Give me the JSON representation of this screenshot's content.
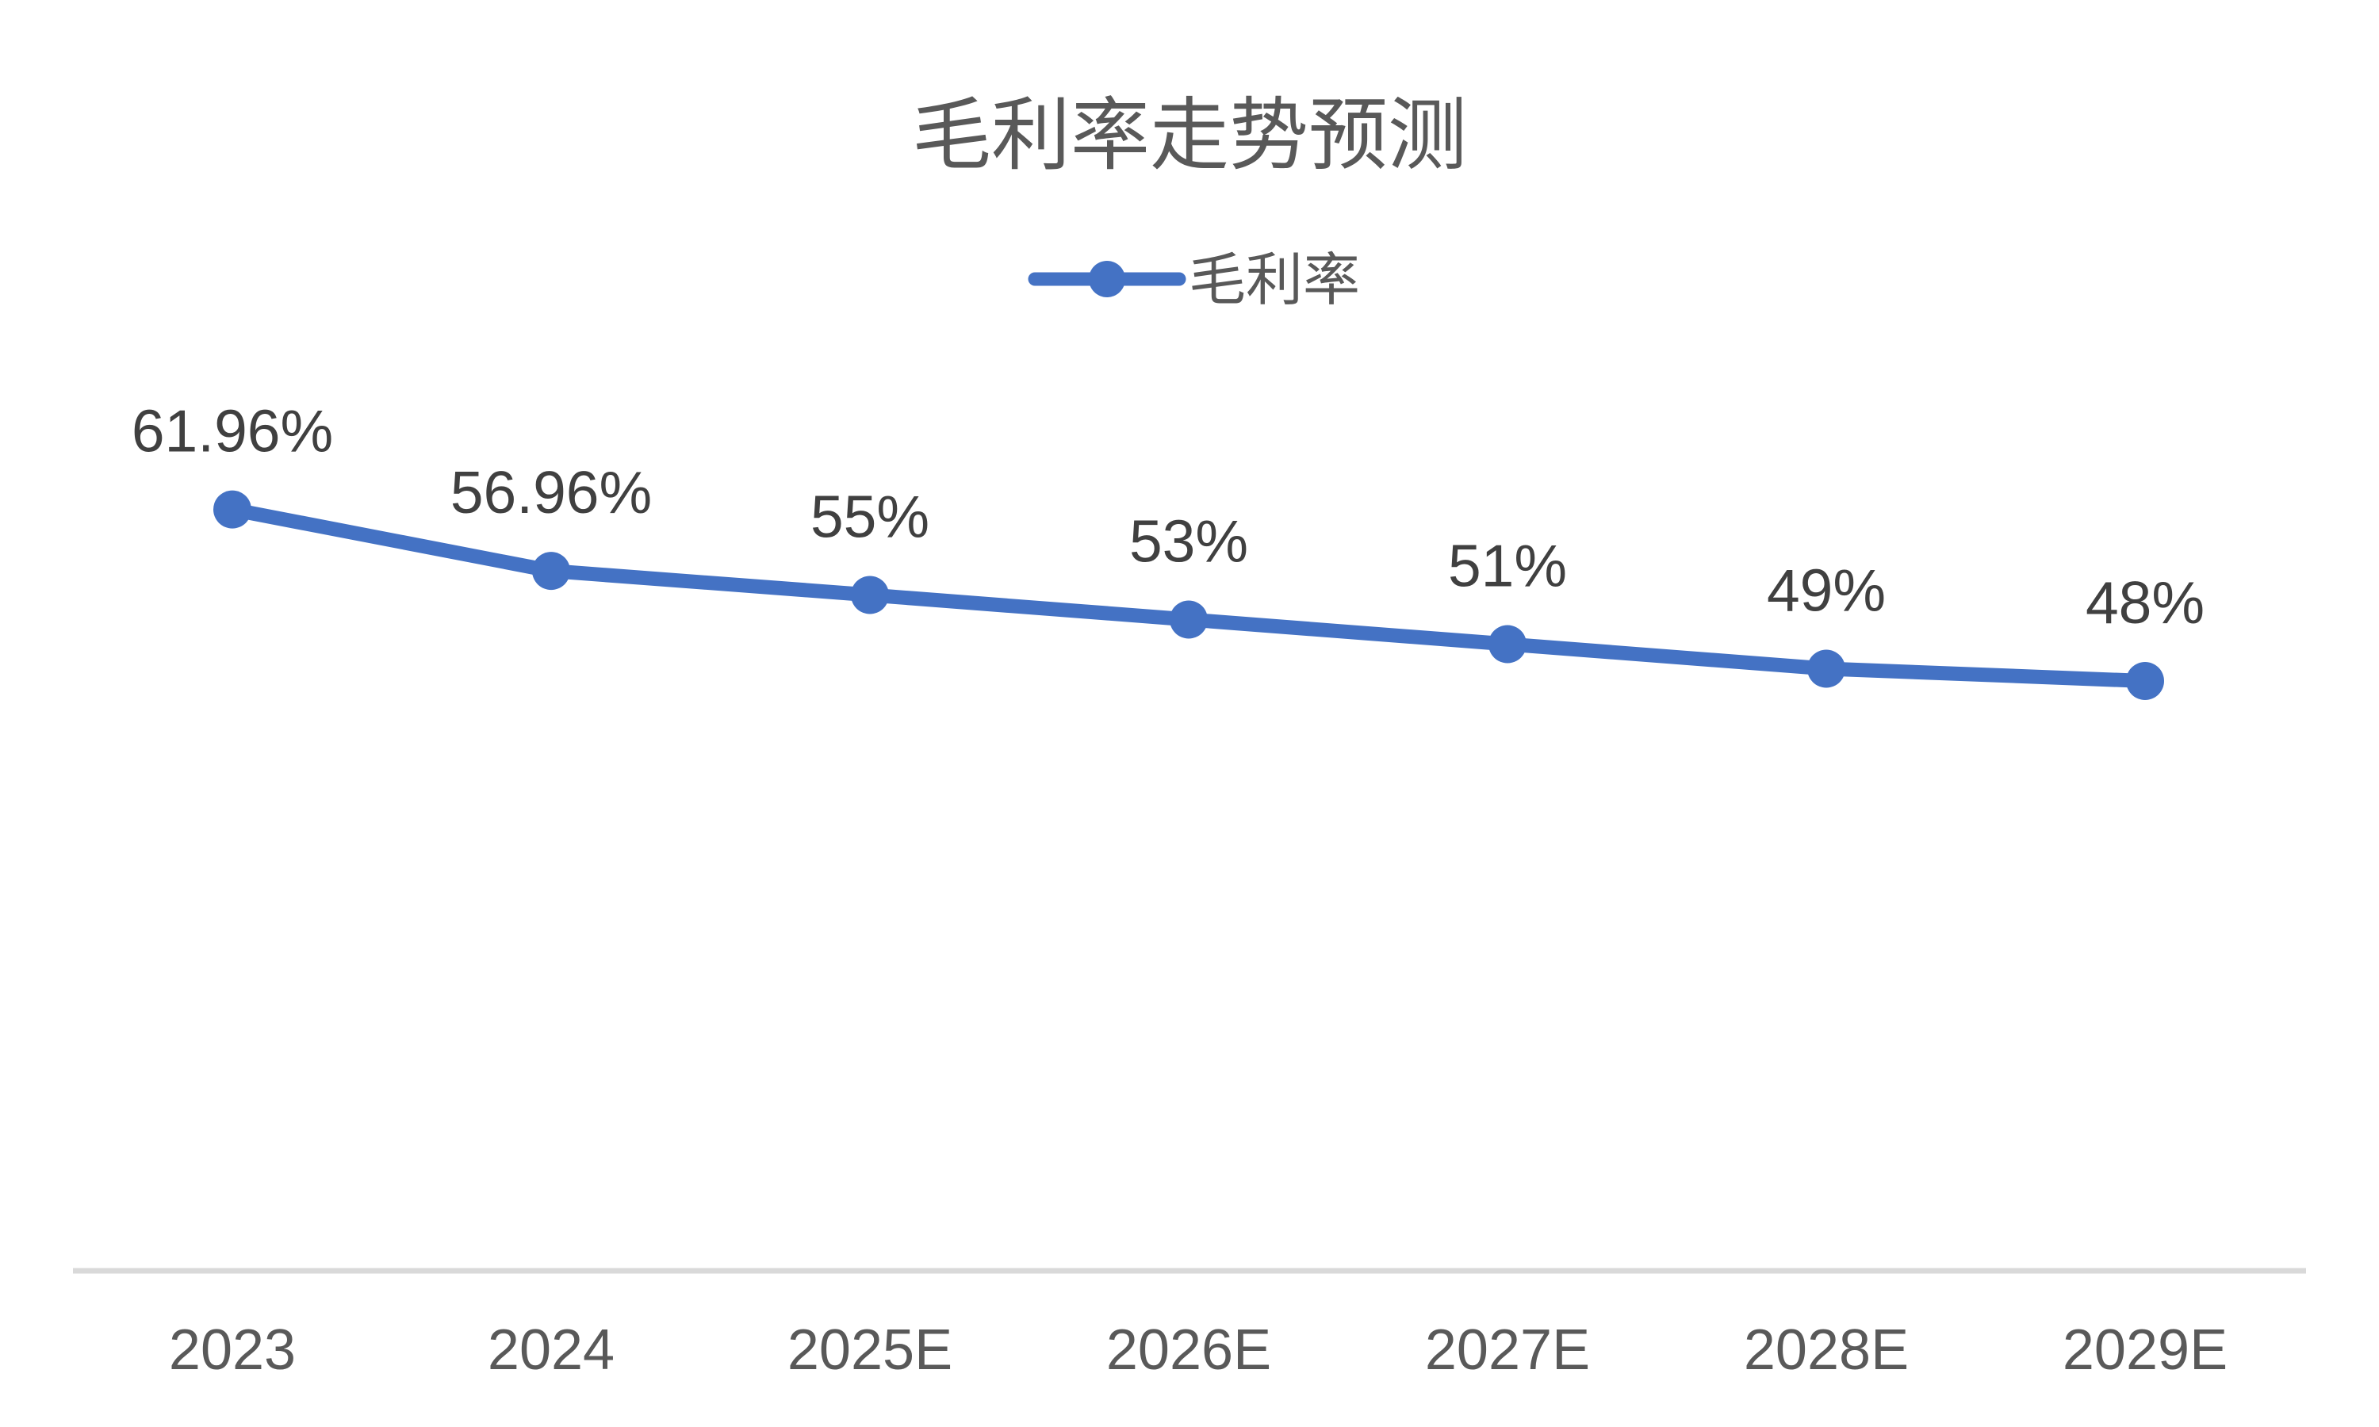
{
  "chart_data": {
    "type": "line",
    "title": "毛利率走势预测",
    "categories": [
      "2023",
      "2024",
      "2025E",
      "2026E",
      "2027E",
      "2028E",
      "2029E"
    ],
    "series": [
      {
        "name": "毛利率",
        "values": [
          61.96,
          56.96,
          55,
          53,
          51,
          49,
          48
        ],
        "color": "#4472C4"
      }
    ],
    "data_labels": [
      "61.96%",
      "56.96%",
      "55%",
      "53%",
      "51%",
      "49%",
      "48%"
    ],
    "xlabel": "",
    "ylabel": "",
    "ylim": [
      0,
      70
    ],
    "y_axis_visible": false,
    "grid": false,
    "legend_position": "top-center",
    "data_label_position": "above",
    "colors": {
      "series": "#4472C4",
      "axis_line": "#D9D9D9",
      "data_label": "#404040",
      "tick_label": "#595959",
      "title": "#595959",
      "background": "#FFFFFF"
    }
  }
}
